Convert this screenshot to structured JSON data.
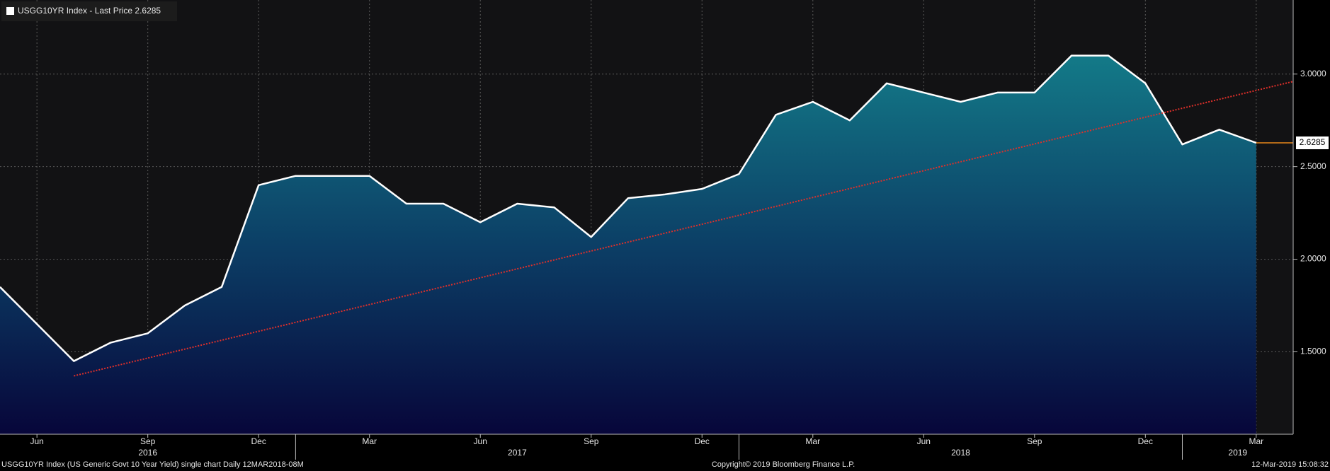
{
  "chart_data": {
    "type": "area",
    "title": "USGG10YR Index - Last Price 2.6285",
    "footer_left": "USGG10YR Index (US Generic Govt 10 Year Yield) single chart  Daily 12MAR2018-08M",
    "footer_center": "Copyright© 2019 Bloomberg Finance L.P.",
    "footer_right": "12-Mar-2019 15:08:32",
    "x": [
      "2016-05",
      "2016-06",
      "2016-07",
      "2016-08",
      "2016-09",
      "2016-10",
      "2016-11",
      "2016-12",
      "2017-01",
      "2017-02",
      "2017-03",
      "2017-04",
      "2017-05",
      "2017-06",
      "2017-07",
      "2017-08",
      "2017-09",
      "2017-10",
      "2017-11",
      "2017-12",
      "2018-01",
      "2018-02",
      "2018-03",
      "2018-04",
      "2018-05",
      "2018-06",
      "2018-07",
      "2018-08",
      "2018-09",
      "2018-10",
      "2018-11",
      "2018-12",
      "2019-01",
      "2019-02",
      "2019-03"
    ],
    "series": [
      {
        "name": "USGG10YR Index",
        "color": "#ffffff",
        "values": [
          1.85,
          1.65,
          1.45,
          1.55,
          1.6,
          1.75,
          1.85,
          2.4,
          2.45,
          2.45,
          2.45,
          2.3,
          2.3,
          2.2,
          2.3,
          2.28,
          2.12,
          2.33,
          2.35,
          2.38,
          2.46,
          2.78,
          2.85,
          2.75,
          2.95,
          2.9,
          2.85,
          2.9,
          2.9,
          3.1,
          3.1,
          2.95,
          2.62,
          2.7,
          2.6285
        ]
      }
    ],
    "trendline": {
      "color": "#e0302a",
      "x": [
        "2016-07",
        "2019-04"
      ],
      "values": [
        1.37,
        2.96
      ]
    },
    "last_price_color": "#e8861a",
    "xlim": [
      "2016-05",
      "2019-04"
    ],
    "ylim": [
      1.055,
      3.4
    ],
    "yticks": [
      {
        "value": 1.5,
        "label": "1.5000"
      },
      {
        "value": 2,
        "label": "2.0000"
      },
      {
        "value": 2.5,
        "label": "2.5000"
      },
      {
        "value": 3,
        "label": "3.0000"
      }
    ],
    "xticks": [
      {
        "value": "2016-06",
        "label": "Jun"
      },
      {
        "value": "2016-09",
        "label": "Sep"
      },
      {
        "value": "2016-12",
        "label": "Dec"
      },
      {
        "value": "2017-03",
        "label": "Mar"
      },
      {
        "value": "2017-06",
        "label": "Jun"
      },
      {
        "value": "2017-09",
        "label": "Sep"
      },
      {
        "value": "2017-12",
        "label": "Dec"
      },
      {
        "value": "2018-03",
        "label": "Mar"
      },
      {
        "value": "2018-06",
        "label": "Jun"
      },
      {
        "value": "2018-09",
        "label": "Sep"
      },
      {
        "value": "2018-12",
        "label": "Dec"
      },
      {
        "value": "2019-03",
        "label": "Mar"
      }
    ],
    "years": [
      {
        "value": "2016-01",
        "label": "2016"
      },
      {
        "value": "2017-01",
        "label": "2017"
      },
      {
        "value": "2018-01",
        "label": "2018"
      },
      {
        "value": "2019-01",
        "label": "2019"
      }
    ],
    "grid": true
  }
}
